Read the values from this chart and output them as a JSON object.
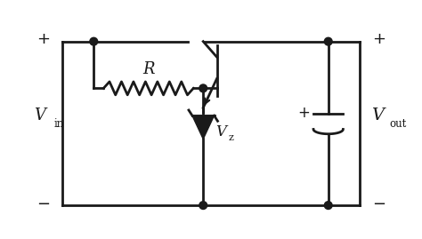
{
  "bg_color": "#ffffff",
  "line_color": "#1a1a1a",
  "line_width": 2.0,
  "fig_width": 4.74,
  "fig_height": 2.69,
  "labels": {
    "vin": "V",
    "vin_sub": "in",
    "vout": "V",
    "vout_sub": "out",
    "vz": "V",
    "vz_sub": "z",
    "R": "R",
    "plus_left": "+",
    "minus_left": "−",
    "plus_right": "+",
    "minus_right": "−",
    "plus_cap": "+"
  }
}
